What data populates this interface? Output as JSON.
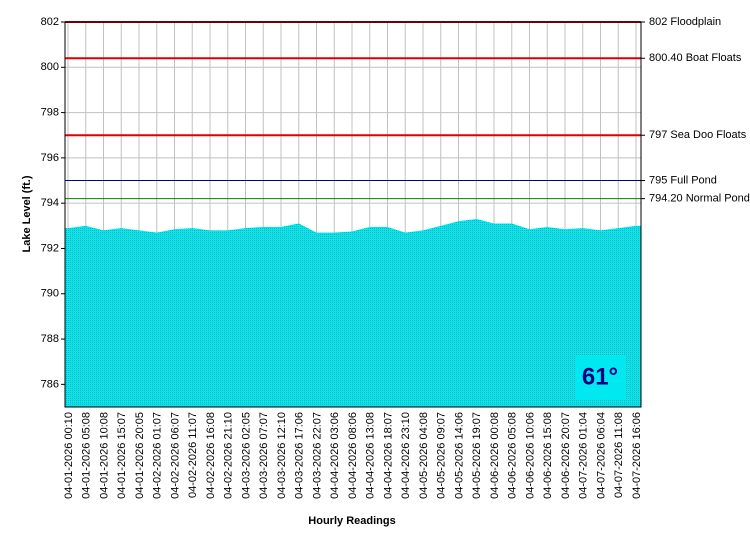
{
  "chart_data": {
    "type": "area",
    "y_label": "Lake Level (ft.)",
    "x_label": "Hourly Readings",
    "badge": "61°",
    "categories": [
      "04-01-2026 00:10",
      "04-01-2026 05:08",
      "04-01-2026 10:08",
      "04-01-2026 15:07",
      "04-01-2026 20:05",
      "04-02-2026 01:07",
      "04-02-2026 06:07",
      "04-02-2026 11:07",
      "04-02-2026 16:08",
      "04-02-2026 21:10",
      "04-03-2026 02:05",
      "04-03-2026 07:07",
      "04-03-2026 12:10",
      "04-03-2026 17:06",
      "04-03-2026 22:07",
      "04-04-2026 03:06",
      "04-04-2026 08:06",
      "04-04-2026 13:08",
      "04-04-2026 18:07",
      "04-04-2026 23:10",
      "04-05-2026 04:08",
      "04-05-2026 09:07",
      "04-05-2026 14:06",
      "04-05-2026 19:07",
      "04-06-2026 00:08",
      "04-06-2026 05:08",
      "04-06-2026 10:06",
      "04-06-2026 15:08",
      "04-06-2026 20:07",
      "04-07-2026 01:04",
      "04-07-2026 06:04",
      "04-07-2026 11:08",
      "04-07-2026 16:06"
    ],
    "values": [
      792.9,
      793.0,
      792.8,
      792.9,
      792.8,
      792.7,
      792.85,
      792.9,
      792.8,
      792.8,
      792.9,
      792.95,
      792.95,
      793.1,
      792.7,
      792.7,
      792.75,
      792.95,
      792.95,
      792.7,
      792.8,
      793.0,
      793.2,
      793.3,
      793.1,
      793.1,
      792.85,
      792.95,
      792.85,
      792.9,
      792.8,
      792.9,
      793.0
    ],
    "color": "#00e8f0",
    "ylim": [
      785,
      802
    ],
    "yticks": [
      786,
      788,
      790,
      792,
      794,
      796,
      798,
      800,
      802
    ],
    "grid": true,
    "reference_lines": [
      {
        "value": 802,
        "label": "802 Floodplain",
        "color": "#e00000"
      },
      {
        "value": 800.4,
        "label": "800.40 Boat Floats",
        "color": "#e00000"
      },
      {
        "value": 797,
        "label": "797 Sea Doo Floats",
        "color": "#e00000"
      },
      {
        "value": 795,
        "label": "795 Full Pond",
        "color": "#000080"
      },
      {
        "value": 794.2,
        "label": "794.20 Normal Pond",
        "color": "#008000"
      }
    ]
  }
}
